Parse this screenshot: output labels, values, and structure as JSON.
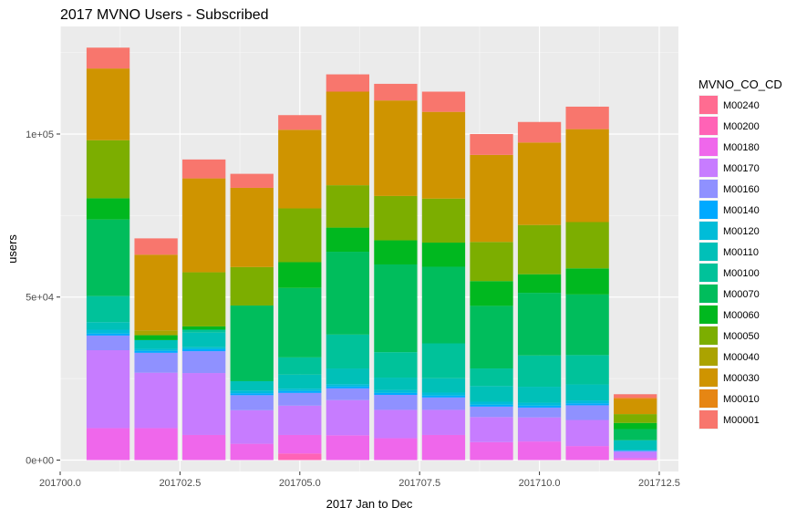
{
  "chart_data": {
    "type": "bar",
    "stacked": true,
    "title": "2017 MVNO Users - Subscribed",
    "xlabel": "2017 Jan to Dec",
    "ylabel": "users",
    "x": [
      201701,
      201702,
      201703,
      201704,
      201705,
      201706,
      201707,
      201708,
      201709,
      201710,
      201711,
      201712
    ],
    "xlim": [
      201700,
      201712.9
    ],
    "ylim": [
      -3500,
      133000
    ],
    "x_ticks": [
      {
        "value": 201700.0,
        "label": "201700.0"
      },
      {
        "value": 201702.5,
        "label": "201702.5"
      },
      {
        "value": 201705.0,
        "label": "201705.0"
      },
      {
        "value": 201707.5,
        "label": "201707.5"
      },
      {
        "value": 201710.0,
        "label": "201710.0"
      },
      {
        "value": 201712.5,
        "label": "201712.5"
      }
    ],
    "y_ticks": [
      {
        "value": 0,
        "label": "0e+00"
      },
      {
        "value": 50000,
        "label": "5e+04"
      },
      {
        "value": 100000,
        "label": "1e+05"
      }
    ],
    "grid": true,
    "legend": {
      "title": "MVNO_CO_CD",
      "position": "right",
      "entries": [
        {
          "name": "M00240",
          "color": "#FF6C91"
        },
        {
          "name": "M00200",
          "color": "#FF63B6"
        },
        {
          "name": "M00180",
          "color": "#EF67EB"
        },
        {
          "name": "M00170",
          "color": "#C77CFF"
        },
        {
          "name": "M00160",
          "color": "#8F91FF"
        },
        {
          "name": "M00140",
          "color": "#00A9FF"
        },
        {
          "name": "M00120",
          "color": "#00BCD8"
        },
        {
          "name": "M00110",
          "color": "#00C0B8"
        },
        {
          "name": "M00100",
          "color": "#00C29A"
        },
        {
          "name": "M00070",
          "color": "#00BD5C"
        },
        {
          "name": "M00060",
          "color": "#00B81F"
        },
        {
          "name": "M00050",
          "color": "#7CAE00"
        },
        {
          "name": "M00040",
          "color": "#ABA300"
        },
        {
          "name": "M00030",
          "color": "#CF9400"
        },
        {
          "name": "M00010",
          "color": "#E68613"
        },
        {
          "name": "M00001",
          "color": "#F8766D"
        }
      ]
    },
    "stack_order_bottom_to_top": [
      "M00240",
      "M00200",
      "M00180",
      "M00170",
      "M00160",
      "M00140",
      "M00120",
      "M00110",
      "M00100",
      "M00070",
      "M00060",
      "M00050",
      "M00040",
      "M00030",
      "M00010",
      "M00001"
    ],
    "series": [
      {
        "name": "M00240",
        "values": [
          0,
          0,
          0,
          0,
          0,
          0,
          0,
          0,
          0,
          0,
          0,
          0
        ]
      },
      {
        "name": "M00200",
        "values": [
          0,
          0,
          0,
          0,
          2000,
          0,
          0,
          0,
          0,
          0,
          0,
          0
        ]
      },
      {
        "name": "M00180",
        "values": [
          9800,
          9800,
          7700,
          5000,
          5700,
          7600,
          6700,
          7700,
          5500,
          5700,
          4300,
          600
        ]
      },
      {
        "name": "M00170",
        "values": [
          23900,
          17000,
          19000,
          10300,
          9000,
          10800,
          8700,
          7700,
          7700,
          7400,
          8000,
          1900
        ]
      },
      {
        "name": "M00160",
        "values": [
          4500,
          6100,
          6700,
          4600,
          3900,
          3600,
          4600,
          3800,
          3200,
          3000,
          4500,
          300
        ]
      },
      {
        "name": "M00140",
        "values": [
          600,
          600,
          600,
          600,
          600,
          600,
          600,
          600,
          600,
          600,
          600,
          100
        ]
      },
      {
        "name": "M00120",
        "values": [
          1200,
          600,
          600,
          800,
          700,
          700,
          900,
          900,
          900,
          900,
          900,
          300
        ]
      },
      {
        "name": "M00110",
        "values": [
          2300,
          2700,
          4500,
          2900,
          4300,
          4800,
          3800,
          4400,
          4800,
          4900,
          4900,
          2900
        ]
      },
      {
        "name": "M00100",
        "values": [
          8000,
          0,
          900,
          0,
          5300,
          10400,
          7800,
          10700,
          5400,
          9600,
          9000,
          0
        ]
      },
      {
        "name": "M00070",
        "values": [
          23500,
          0,
          0,
          23200,
          21300,
          25400,
          26900,
          23500,
          19200,
          19200,
          18600,
          3400
        ]
      },
      {
        "name": "M00060",
        "values": [
          6500,
          1500,
          1000,
          0,
          7900,
          7400,
          7400,
          7400,
          7600,
          5700,
          8000,
          1900
        ]
      },
      {
        "name": "M00050",
        "values": [
          17800,
          0,
          16600,
          11800,
          16500,
          13000,
          13600,
          13500,
          12000,
          15100,
          14200,
          2700
        ]
      },
      {
        "name": "M00040",
        "values": [
          0,
          1500,
          0,
          0,
          0,
          0,
          0,
          0,
          0,
          0,
          0,
          0
        ]
      },
      {
        "name": "M00030",
        "values": [
          22000,
          23200,
          28800,
          24300,
          24100,
          28700,
          29300,
          26600,
          26700,
          25300,
          28500,
          4500
        ]
      },
      {
        "name": "M00010",
        "values": [
          0,
          0,
          0,
          0,
          0,
          0,
          0,
          0,
          0,
          0,
          0,
          500
        ]
      },
      {
        "name": "M00001",
        "values": [
          6400,
          5000,
          5800,
          4300,
          4500,
          5300,
          5100,
          6200,
          6400,
          6300,
          6900,
          1100
        ]
      }
    ]
  }
}
